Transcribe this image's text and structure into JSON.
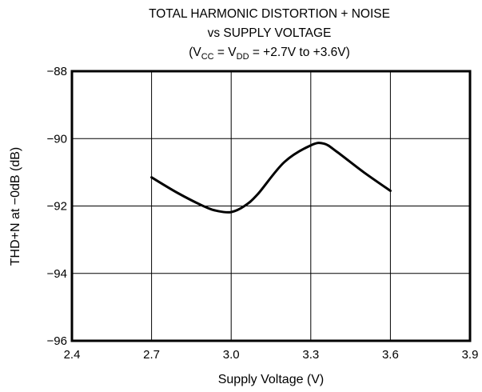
{
  "chart_data": {
    "type": "line",
    "title": "TOTAL HARMONIC DISTORTION + NOISE",
    "subtitle": "vs SUPPLY VOLTAGE",
    "condition": {
      "open": "(V",
      "sub1": "CC",
      "mid": " = V",
      "sub2": "DD",
      "close": " = +2.7V to +3.6V)"
    },
    "xlabel": "Supply Voltage (V)",
    "ylabel": "THD+N at −0dB (dB)",
    "xlim": [
      2.4,
      3.9
    ],
    "ylim": [
      -96,
      -88
    ],
    "x_ticks": [
      2.4,
      2.7,
      3.0,
      3.3,
      3.6,
      3.9
    ],
    "x_tick_labels": [
      "2.4",
      "2.7",
      "3.0",
      "3.3",
      "3.6",
      "3.9"
    ],
    "y_ticks": [
      -88,
      -90,
      -92,
      -94,
      -96
    ],
    "y_tick_labels": [
      "−88",
      "−90",
      "−92",
      "−94",
      "−96"
    ],
    "grid": true,
    "series": [
      {
        "x": [
          2.7,
          2.8,
          2.9,
          2.95,
          3.0,
          3.05,
          3.1,
          3.2,
          3.3,
          3.35,
          3.4,
          3.5,
          3.6
        ],
        "y": [
          -91.15,
          -91.62,
          -92.02,
          -92.15,
          -92.18,
          -92.0,
          -91.65,
          -90.7,
          -90.2,
          -90.15,
          -90.4,
          -91.0,
          -91.55
        ]
      }
    ]
  }
}
